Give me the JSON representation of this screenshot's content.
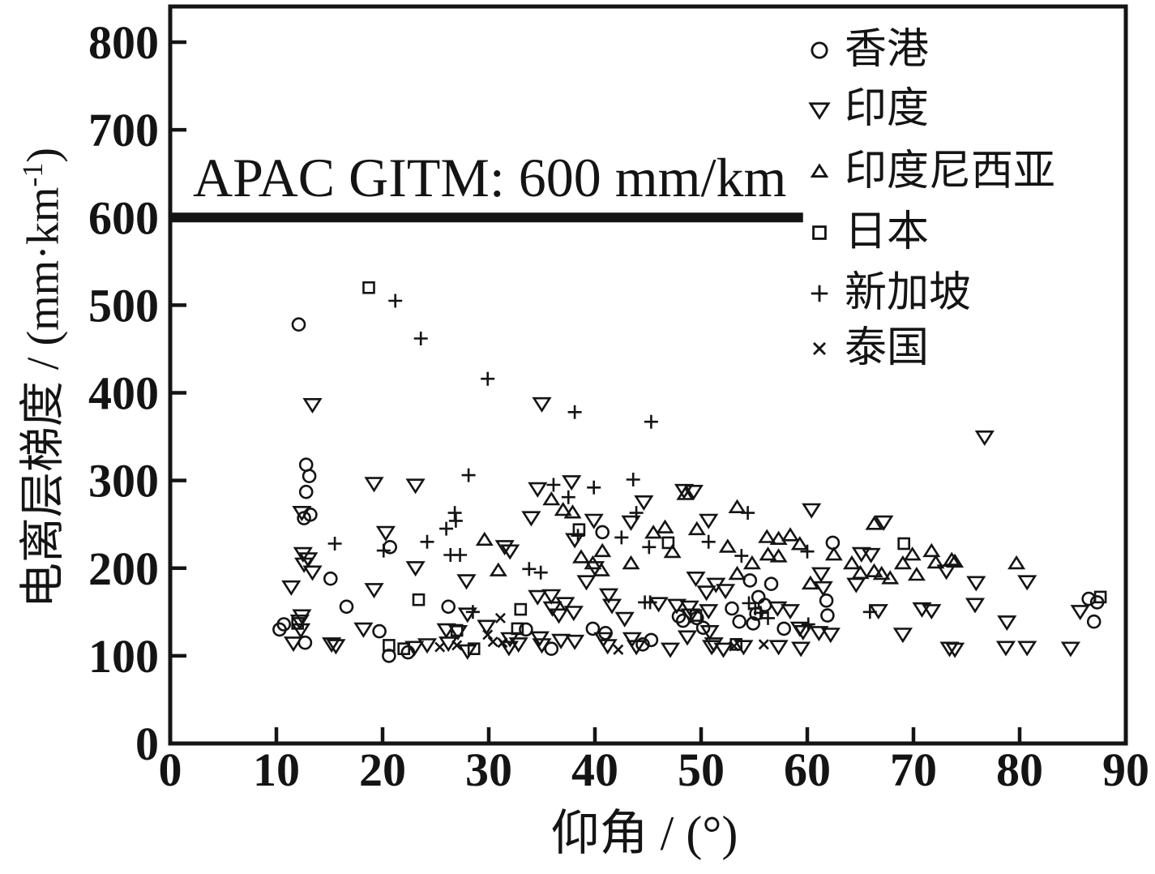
{
  "figure": {
    "background": "#ffffff",
    "ink_color": "#141414"
  },
  "chart_data": {
    "type": "scatter",
    "title": "",
    "xlabel": "仰角 / (°)",
    "ylabel": "电离层梯度 / (mm·km⁻¹)",
    "ylabel_parts": {
      "pre": "电离层梯度 / (mm·km",
      "sup": "-1",
      "post": ")"
    },
    "xlim": [
      0,
      90
    ],
    "ylim": [
      0,
      800
    ],
    "xticks": [
      0,
      10,
      20,
      30,
      40,
      50,
      60,
      70,
      80,
      90
    ],
    "yticks": [
      0,
      100,
      200,
      300,
      400,
      500,
      600,
      700,
      800
    ],
    "grid": false,
    "legend_position": "top-right-inside",
    "annotation": {
      "text": "APAC GITM: 600 mm/km",
      "line_y": 600,
      "line_x_range": [
        0,
        59.6
      ]
    },
    "series": [
      {
        "name": "香港",
        "slug": "hong-kong",
        "marker": "circle",
        "points": [
          [
            10.3,
            130
          ],
          [
            10.7,
            136
          ],
          [
            12.1,
            478
          ],
          [
            12.8,
            318
          ],
          [
            13.1,
            305
          ],
          [
            12.8,
            287
          ],
          [
            13.2,
            261
          ],
          [
            12.6,
            257
          ],
          [
            12.7,
            115
          ],
          [
            15.1,
            188
          ],
          [
            16.6,
            156
          ],
          [
            19.7,
            128
          ],
          [
            20.7,
            224
          ],
          [
            20.6,
            100
          ],
          [
            22.4,
            104
          ],
          [
            26.2,
            156
          ],
          [
            33.5,
            130
          ],
          [
            35.9,
            108
          ],
          [
            40.7,
            241
          ],
          [
            39.8,
            131
          ],
          [
            41.0,
            126
          ],
          [
            44.5,
            113
          ],
          [
            45.3,
            118
          ],
          [
            47.9,
            145
          ],
          [
            48.3,
            140
          ],
          [
            49.6,
            143
          ],
          [
            50.2,
            132
          ],
          [
            52.9,
            154
          ],
          [
            53.6,
            139
          ],
          [
            54.9,
            137
          ],
          [
            54.6,
            186
          ],
          [
            56.6,
            182
          ],
          [
            55.4,
            167
          ],
          [
            56.0,
            158
          ],
          [
            55.2,
            148
          ],
          [
            57.8,
            131
          ],
          [
            62.4,
            229
          ],
          [
            61.8,
            163
          ],
          [
            61.9,
            146
          ],
          [
            86.5,
            165
          ],
          [
            87.3,
            161
          ],
          [
            87.0,
            139
          ]
        ]
      },
      {
        "name": "印度",
        "slug": "india",
        "marker": "triangle-down",
        "points": [
          [
            11.4,
            179
          ],
          [
            11.6,
            115
          ],
          [
            12.2,
            140
          ],
          [
            12.3,
            130
          ],
          [
            12.4,
            264
          ],
          [
            12.4,
            146
          ],
          [
            12.5,
            217
          ],
          [
            13.0,
            211
          ],
          [
            12.6,
            205
          ],
          [
            13.4,
            196
          ],
          [
            13.4,
            387
          ],
          [
            15.2,
            114
          ],
          [
            15.6,
            112
          ],
          [
            18.2,
            131
          ],
          [
            19.2,
            297
          ],
          [
            19.2,
            176
          ],
          [
            20.3,
            241
          ],
          [
            23.1,
            295
          ],
          [
            23.1,
            201
          ],
          [
            23.0,
            110
          ],
          [
            24.2,
            113
          ],
          [
            26.0,
            130
          ],
          [
            26.2,
            115
          ],
          [
            27.1,
            128
          ],
          [
            27.9,
            186
          ],
          [
            28.0,
            148
          ],
          [
            28.0,
            106
          ],
          [
            29.8,
            134
          ],
          [
            31.9,
            110
          ],
          [
            31.5,
            225
          ],
          [
            32.0,
            220
          ],
          [
            32.0,
            120
          ],
          [
            32.8,
            114
          ],
          [
            34.0,
            258
          ],
          [
            34.6,
            291
          ],
          [
            34.6,
            168
          ],
          [
            34.8,
            121
          ],
          [
            35.0,
            388
          ],
          [
            35.0,
            113
          ],
          [
            35.9,
            169
          ],
          [
            36.0,
            155
          ],
          [
            36.6,
            147
          ],
          [
            36.8,
            118
          ],
          [
            37.2,
            160
          ],
          [
            37.8,
            299
          ],
          [
            38.0,
            150
          ],
          [
            38.1,
            233
          ],
          [
            38.1,
            117
          ],
          [
            39.2,
            185
          ],
          [
            39.9,
            255
          ],
          [
            40.0,
            201
          ],
          [
            40.8,
            120
          ],
          [
            41.2,
            112
          ],
          [
            41.3,
            170
          ],
          [
            41.6,
            158
          ],
          [
            42.8,
            143
          ],
          [
            43.4,
            253
          ],
          [
            43.5,
            120
          ],
          [
            43.9,
            111
          ],
          [
            44.6,
            276
          ],
          [
            46.0,
            160
          ],
          [
            47.1,
            108
          ],
          [
            47.7,
            158
          ],
          [
            48.4,
            289
          ],
          [
            48.7,
            122
          ],
          [
            48.9,
            156
          ],
          [
            49.0,
            147
          ],
          [
            49.3,
            288
          ],
          [
            49.5,
            189
          ],
          [
            50.5,
            173
          ],
          [
            50.7,
            255
          ],
          [
            50.7,
            152
          ],
          [
            50.8,
            128
          ],
          [
            51.0,
            111
          ],
          [
            51.2,
            114
          ],
          [
            51.4,
            182
          ],
          [
            52.1,
            108
          ],
          [
            52.3,
            175
          ],
          [
            54.0,
            111
          ],
          [
            57.2,
            155
          ],
          [
            57.3,
            111
          ],
          [
            58.4,
            152
          ],
          [
            59.3,
            132
          ],
          [
            59.4,
            109
          ],
          [
            59.6,
            128
          ],
          [
            60.4,
            267
          ],
          [
            61.1,
            127
          ],
          [
            61.3,
            194
          ],
          [
            61.5,
            178
          ],
          [
            62.2,
            125
          ],
          [
            65.1,
            217
          ],
          [
            66.0,
            216
          ],
          [
            67.2,
            253
          ],
          [
            64.6,
            182
          ],
          [
            66.7,
            152
          ],
          [
            69.0,
            125
          ],
          [
            70.8,
            154
          ],
          [
            71.7,
            152
          ],
          [
            73.1,
            197
          ],
          [
            73.4,
            109
          ],
          [
            73.9,
            108
          ],
          [
            75.8,
            159
          ],
          [
            75.9,
            184
          ],
          [
            76.7,
            350
          ],
          [
            78.7,
            110
          ],
          [
            78.8,
            139
          ],
          [
            80.7,
            185
          ],
          [
            80.7,
            110
          ],
          [
            84.8,
            109
          ],
          [
            85.7,
            151
          ]
        ]
      },
      {
        "name": "印度尼西亚",
        "slug": "indonesia",
        "marker": "triangle-up",
        "points": [
          [
            29.6,
            232
          ],
          [
            30.9,
            197
          ],
          [
            35.9,
            278
          ],
          [
            37.0,
            266
          ],
          [
            37.9,
            263
          ],
          [
            38.7,
            212
          ],
          [
            39.8,
            205
          ],
          [
            40.6,
            197
          ],
          [
            40.7,
            219
          ],
          [
            43.4,
            205
          ],
          [
            45.5,
            240
          ],
          [
            46.6,
            246
          ],
          [
            47.3,
            218
          ],
          [
            48.5,
            284
          ],
          [
            49.6,
            244
          ],
          [
            52.5,
            224
          ],
          [
            53.4,
            269
          ],
          [
            53.4,
            193
          ],
          [
            54.8,
            205
          ],
          [
            56.2,
            235
          ],
          [
            56.3,
            215
          ],
          [
            57.3,
            233
          ],
          [
            57.3,
            213
          ],
          [
            58.4,
            237
          ],
          [
            59.3,
            227
          ],
          [
            60.3,
            182
          ],
          [
            62.5,
            215
          ],
          [
            64.2,
            205
          ],
          [
            65.0,
            194
          ],
          [
            66.3,
            250
          ],
          [
            66.3,
            196
          ],
          [
            67.0,
            193
          ],
          [
            67.8,
            188
          ],
          [
            69.0,
            205
          ],
          [
            69.9,
            215
          ],
          [
            70.3,
            192
          ],
          [
            71.7,
            219
          ],
          [
            72.1,
            206
          ],
          [
            73.6,
            209
          ],
          [
            73.9,
            207
          ],
          [
            79.7,
            205
          ]
        ]
      },
      {
        "name": "日本",
        "slug": "japan",
        "marker": "square",
        "points": [
          [
            18.7,
            520
          ],
          [
            12.0,
            137
          ],
          [
            23.4,
            164
          ],
          [
            20.6,
            112
          ],
          [
            22.0,
            108
          ],
          [
            27.0,
            129
          ],
          [
            28.6,
            108
          ],
          [
            33.0,
            153
          ],
          [
            32.7,
            131
          ],
          [
            38.5,
            244
          ],
          [
            46.9,
            229
          ],
          [
            49.5,
            146
          ],
          [
            53.3,
            113
          ],
          [
            69.1,
            228
          ],
          [
            87.6,
            167
          ]
        ]
      },
      {
        "name": "新加坡",
        "slug": "singapore",
        "marker": "plus",
        "points": [
          [
            15.5,
            228
          ],
          [
            20.1,
            220
          ],
          [
            21.2,
            505
          ],
          [
            23.6,
            462
          ],
          [
            24.2,
            230
          ],
          [
            26.0,
            245
          ],
          [
            26.4,
            215
          ],
          [
            26.8,
            263
          ],
          [
            26.9,
            254
          ],
          [
            27.3,
            215
          ],
          [
            28.1,
            306
          ],
          [
            28.5,
            150
          ],
          [
            29.9,
            416
          ],
          [
            33.8,
            199
          ],
          [
            34.9,
            195
          ],
          [
            36.1,
            295
          ],
          [
            37.5,
            281
          ],
          [
            38.1,
            378
          ],
          [
            38.4,
            237
          ],
          [
            39.9,
            292
          ],
          [
            42.5,
            235
          ],
          [
            43.6,
            301
          ],
          [
            43.9,
            263
          ],
          [
            44.7,
            161
          ],
          [
            45.1,
            224
          ],
          [
            45.2,
            161
          ],
          [
            45.3,
            367
          ],
          [
            50.7,
            230
          ],
          [
            53.8,
            214
          ],
          [
            54.4,
            263
          ],
          [
            54.5,
            160
          ],
          [
            55.1,
            154
          ],
          [
            55.6,
            149
          ],
          [
            56.3,
            143
          ],
          [
            60.0,
            219
          ],
          [
            60.1,
            136
          ],
          [
            65.9,
            150
          ]
        ]
      },
      {
        "name": "泰国",
        "slug": "thailand",
        "marker": "x",
        "points": [
          [
            25.4,
            110
          ],
          [
            27.0,
            112
          ],
          [
            29.9,
            124
          ],
          [
            30.4,
            116
          ],
          [
            31.1,
            143
          ],
          [
            31.3,
            115
          ],
          [
            42.2,
            107
          ],
          [
            53.1,
            111
          ],
          [
            55.9,
            113
          ]
        ]
      }
    ]
  }
}
